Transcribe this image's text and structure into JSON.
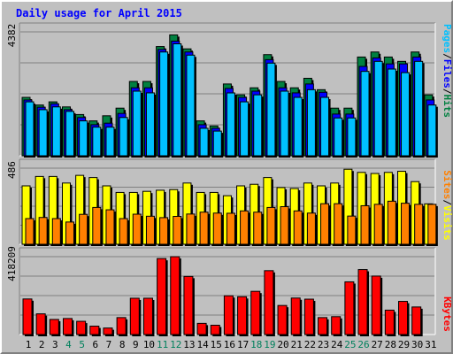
{
  "title": "Daily usage for April 2015",
  "colors": {
    "hits": "#008040",
    "files": "#0000ff",
    "pages": "#00c0ff",
    "visits": "#ffff00",
    "sites": "#ff8000",
    "kbytes": "#ff0000",
    "weekend_day": "#00805c",
    "weekday": "#000000"
  },
  "chart_data": [
    {
      "type": "bar",
      "panel": "hits-files-pages",
      "categories": [
        "1",
        "2",
        "3",
        "4",
        "5",
        "6",
        "7",
        "8",
        "9",
        "10",
        "11",
        "12",
        "13",
        "14",
        "15",
        "16",
        "17",
        "18",
        "19",
        "20",
        "21",
        "22",
        "23",
        "24",
        "25",
        "26",
        "27",
        "28",
        "29",
        "30",
        "31"
      ],
      "ymax_label": "4382",
      "ylim": [
        0,
        4382
      ],
      "side_labels": [
        "Pages",
        "Files",
        "Hits"
      ],
      "series": [
        {
          "name": "Hits",
          "color": "#008040",
          "values": [
            2065,
            1795,
            1907,
            1728,
            1458,
            1234,
            1414,
            1684,
            2628,
            2628,
            3863,
            4276,
            3781,
            1234,
            1055,
            2539,
            2155,
            2404,
            3577,
            2628,
            2404,
            2740,
            2337,
            1684,
            1684,
            3492,
            3670,
            3492,
            3339,
            3670,
            2155
          ]
        },
        {
          "name": "Files",
          "color": "#0000ff",
          "values": [
            1974,
            1717,
            1840,
            1630,
            1353,
            1098,
            1152,
            1497,
            2404,
            2404,
            3760,
            4055,
            3670,
            1098,
            972,
            2381,
            2065,
            2285,
            3400,
            2404,
            2224,
            2539,
            2245,
            1475,
            1475,
            3160,
            3461,
            3249,
            3249,
            3492,
            1974
          ]
        },
        {
          "name": "Pages",
          "color": "#00c0ff",
          "values": [
            1907,
            1630,
            1728,
            1570,
            1234,
            1012,
            1012,
            1353,
            2285,
            2224,
            3670,
            3959,
            3559,
            972,
            873,
            2222,
            1907,
            2155,
            3276,
            2285,
            2065,
            2337,
            2065,
            1337,
            1337,
            2984,
            3339,
            3067,
            2940,
            3339,
            1795
          ]
        }
      ]
    },
    {
      "type": "bar",
      "panel": "visits-sites",
      "categories": [
        "1",
        "2",
        "3",
        "4",
        "5",
        "6",
        "7",
        "8",
        "9",
        "10",
        "11",
        "12",
        "13",
        "14",
        "15",
        "16",
        "17",
        "18",
        "19",
        "20",
        "21",
        "22",
        "23",
        "24",
        "25",
        "26",
        "27",
        "28",
        "29",
        "30",
        "31"
      ],
      "ymax_label": "486",
      "ylim": [
        0,
        486
      ],
      "side_labels": [
        "Sites",
        "Visits"
      ],
      "series": [
        {
          "name": "Visits",
          "color": "#ffff00",
          "values": [
            373,
            433,
            433,
            391,
            440,
            426,
            373,
            331,
            331,
            338,
            345,
            349,
            391,
            331,
            331,
            310,
            373,
            383,
            426,
            362,
            356,
            391,
            373,
            391,
            479,
            459,
            452,
            459,
            466,
            400,
            258
          ]
        },
        {
          "name": "Sites",
          "color": "#ff8000",
          "values": [
            164,
            171,
            164,
            142,
            191,
            235,
            220,
            164,
            192,
            179,
            170,
            178,
            193,
            205,
            199,
            198,
            213,
            205,
            235,
            240,
            213,
            199,
            259,
            259,
            180,
            246,
            255,
            275,
            262,
            255,
            255
          ]
        }
      ]
    },
    {
      "type": "bar",
      "panel": "kbytes",
      "categories": [
        "1",
        "2",
        "3",
        "4",
        "5",
        "6",
        "7",
        "8",
        "9",
        "10",
        "11",
        "12",
        "13",
        "14",
        "15",
        "16",
        "17",
        "18",
        "19",
        "20",
        "21",
        "22",
        "23",
        "24",
        "25",
        "26",
        "27",
        "28",
        "29",
        "30",
        "31"
      ],
      "ymax_label": "418209",
      "ylim": [
        0,
        418209
      ],
      "side_labels": [
        "KBytes"
      ],
      "series": [
        {
          "name": "KBytes",
          "color": "#ff0000",
          "values": [
            191000,
            111000,
            81000,
            86000,
            71000,
            45000,
            35000,
            91000,
            195000,
            195000,
            408000,
            418000,
            312000,
            60000,
            50000,
            208000,
            203000,
            232000,
            343000,
            156000,
            196000,
            190000,
            91000,
            96000,
            283000,
            349000,
            314000,
            131000,
            178000,
            148000,
            0
          ]
        }
      ]
    }
  ]
}
